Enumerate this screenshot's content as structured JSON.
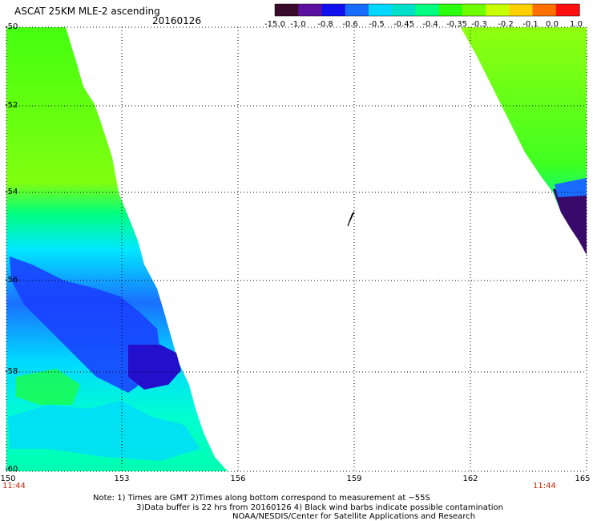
{
  "header": {
    "title": "ASCAT 25KM MLE-2 ascending",
    "date": "20160126"
  },
  "colorbar": {
    "labels": [
      "-15.0",
      "-1.0",
      "-0.8",
      "-0.6",
      "-0.5",
      "-0.45",
      "-0.4",
      "-0.35",
      "-0.3",
      "-0.2",
      "-0.1",
      "0.0",
      "1.0"
    ],
    "colors": [
      "#3a0a2a",
      "#5b10a0",
      "#1010ee",
      "#1a6cff",
      "#00d8ff",
      "#00e0c8",
      "#00ff80",
      "#2bff10",
      "#70ff00",
      "#c8ff00",
      "#ffd000",
      "#ff7000",
      "#ff1010"
    ]
  },
  "axes": {
    "x_ticks": [
      "150",
      "153",
      "156",
      "159",
      "162",
      "165"
    ],
    "y_ticks": [
      "-50",
      "-52",
      "-54",
      "-56",
      "-58",
      "-60"
    ]
  },
  "times": {
    "left": "11:44",
    "right": "11:44"
  },
  "notes": {
    "line1": "Note: 1) Times are GMT 2)Times along bottom correspond to measurement at ~55S",
    "line2": "3)Data buffer is 22 hrs from 20160126 4) Black wind barbs indicate possible contamination",
    "line3": "NOAA/NESDIS/Center for Satellite Applications and Research"
  }
}
